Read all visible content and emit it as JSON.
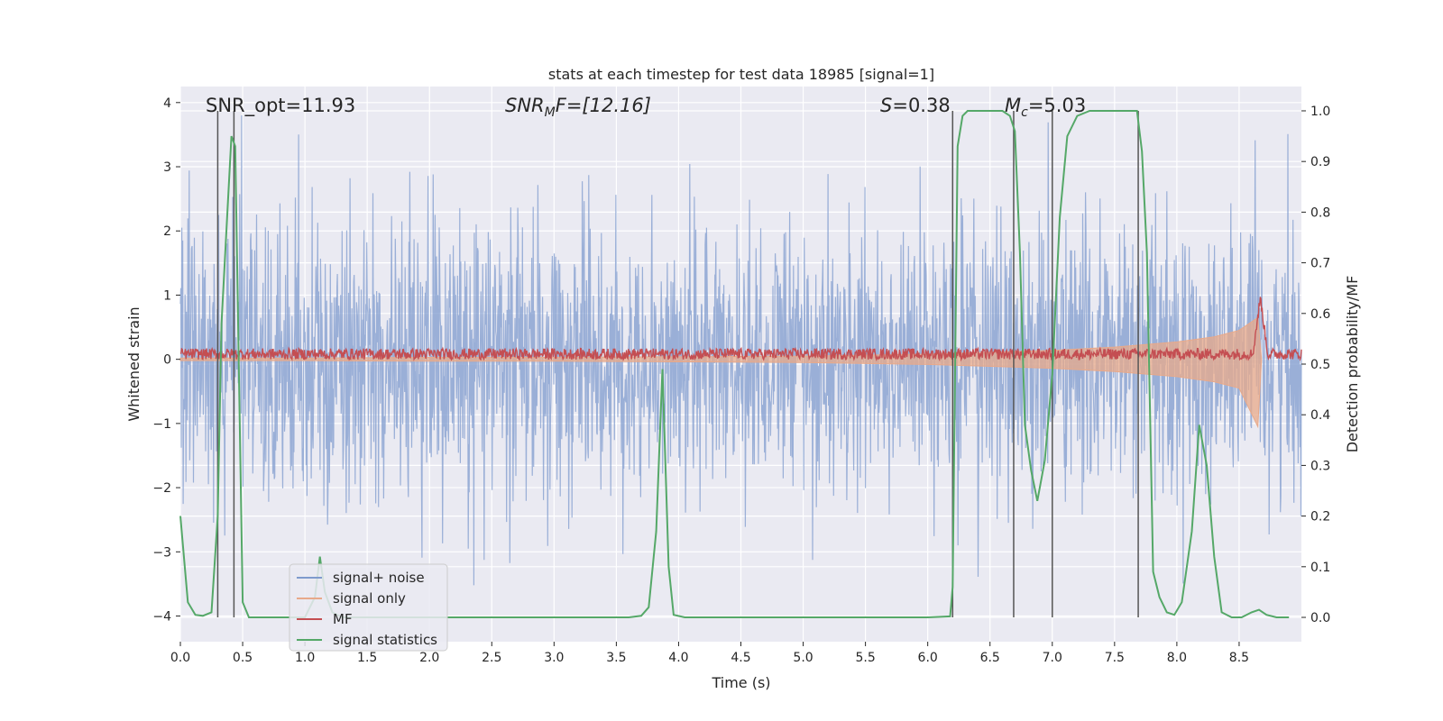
{
  "chart_data": {
    "type": "line",
    "title": "stats at each timestep for test data 18985 [signal=1]",
    "xlabel": "Time (s)",
    "ylabel_left": "Whitened strain",
    "ylabel_right": "Detection probability/MF",
    "xlim": [
      0,
      9.0
    ],
    "ylim_left": [
      -4.4,
      4.25
    ],
    "ylim_right": [
      -0.048,
      1.048
    ],
    "x_ticks": [
      "0.0",
      "0.5",
      "1.0",
      "1.5",
      "2.0",
      "2.5",
      "3.0",
      "3.5",
      "4.0",
      "4.5",
      "5.0",
      "5.5",
      "6.0",
      "6.5",
      "7.0",
      "7.5",
      "8.0",
      "8.5"
    ],
    "y_ticks_left": [
      "−4",
      "−3",
      "−2",
      "−1",
      "0",
      "1",
      "2",
      "3",
      "4"
    ],
    "y_ticks_right": [
      "0.0",
      "0.1",
      "0.2",
      "0.3",
      "0.4",
      "0.5",
      "0.6",
      "0.7",
      "0.8",
      "0.9",
      "1.0"
    ],
    "annotations": {
      "snr_opt": "SNR_opt=11.93",
      "snr_mf_label": "SNR",
      "snr_mf_sub": "M",
      "snr_mf_rest": "F=[12.16]",
      "s_label": "S",
      "s_value": "=0.38",
      "mc_label": "M",
      "mc_sub": "c",
      "mc_value": "=5.03"
    },
    "vertical_lines_x": [
      0.3,
      0.43,
      6.2,
      6.69,
      7.0,
      7.69
    ],
    "legend": {
      "position": "lower-left",
      "entries": [
        {
          "label": "signal+ noise",
          "color": "#7f9bcd"
        },
        {
          "label": "signal only",
          "color": "#e8a98a"
        },
        {
          "label": "MF",
          "color": "#c44e52"
        },
        {
          "label": "signal statistics",
          "color": "#55a868"
        }
      ]
    },
    "series": [
      {
        "name": "signal+ noise",
        "axis": "left",
        "color": "#7f9bcd",
        "description": "whitened noise, approx. ±2.5 range with peaks near ±3.5"
      },
      {
        "name": "signal only",
        "axis": "left",
        "color": "#e8a98a",
        "envelope": {
          "x": [
            0.0,
            1.0,
            2.0,
            3.0,
            4.0,
            5.0,
            6.0,
            7.0,
            7.5,
            8.0,
            8.3,
            8.5,
            8.65,
            8.68
          ],
          "upper": [
            0.02,
            0.02,
            0.03,
            0.03,
            0.04,
            0.05,
            0.08,
            0.14,
            0.19,
            0.27,
            0.35,
            0.45,
            0.65,
            0.0
          ],
          "lower": [
            -0.02,
            -0.02,
            -0.03,
            -0.03,
            -0.04,
            -0.05,
            -0.08,
            -0.14,
            -0.19,
            -0.27,
            -0.35,
            -0.45,
            -1.05,
            0.0
          ]
        }
      },
      {
        "name": "MF",
        "axis": "right",
        "color": "#c44e52",
        "baseline": 0.52,
        "peak": {
          "x": 8.67,
          "y": 0.63
        }
      },
      {
        "name": "signal statistics",
        "axis": "right",
        "color": "#55a868",
        "x": [
          0.0,
          0.06,
          0.12,
          0.18,
          0.25,
          0.3,
          0.33,
          0.41,
          0.44,
          0.5,
          0.55,
          0.6,
          0.7,
          0.8,
          0.9,
          1.0,
          1.08,
          1.12,
          1.16,
          1.22,
          1.3,
          2.0,
          3.0,
          3.6,
          3.7,
          3.76,
          3.82,
          3.87,
          3.92,
          3.96,
          4.05,
          4.5,
          5.0,
          5.5,
          6.0,
          6.18,
          6.2,
          6.24,
          6.28,
          6.32,
          6.4,
          6.5,
          6.6,
          6.66,
          6.7,
          6.74,
          6.78,
          6.83,
          6.88,
          6.94,
          7.0,
          7.06,
          7.12,
          7.2,
          7.3,
          7.45,
          7.6,
          7.68,
          7.72,
          7.76,
          7.81,
          7.86,
          7.92,
          7.98,
          8.04,
          8.12,
          8.18,
          8.24,
          8.3,
          8.36,
          8.44,
          8.52,
          8.6,
          8.66,
          8.72,
          8.8,
          8.9
        ],
        "y": [
          0.2,
          0.03,
          0.005,
          0.003,
          0.01,
          0.2,
          0.58,
          0.95,
          0.93,
          0.03,
          0.0,
          0.0,
          0.0,
          0.0,
          0.0,
          0.0,
          0.04,
          0.12,
          0.05,
          0.01,
          0.0,
          0.0,
          0.0,
          0.0,
          0.003,
          0.02,
          0.17,
          0.49,
          0.1,
          0.005,
          0.0,
          0.0,
          0.0,
          0.0,
          0.0,
          0.002,
          0.06,
          0.93,
          0.99,
          1.0,
          1.0,
          1.0,
          1.0,
          0.99,
          0.96,
          0.72,
          0.38,
          0.29,
          0.23,
          0.31,
          0.48,
          0.79,
          0.95,
          0.99,
          1.0,
          1.0,
          1.0,
          1.0,
          0.92,
          0.72,
          0.09,
          0.04,
          0.01,
          0.005,
          0.03,
          0.17,
          0.38,
          0.3,
          0.12,
          0.01,
          0.0,
          0.0,
          0.01,
          0.015,
          0.005,
          0.0,
          0.0
        ]
      }
    ]
  }
}
